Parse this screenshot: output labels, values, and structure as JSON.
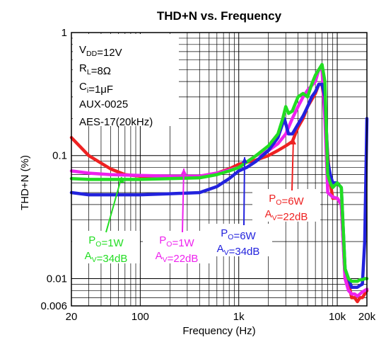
{
  "chart_data": {
    "type": "line",
    "title": "THD+N vs. Frequency",
    "xlabel": "Frequency (Hz)",
    "ylabel": "THD+N (%)",
    "xscale": "log",
    "yscale": "log",
    "xlim": [
      20,
      20000
    ],
    "ylim": [
      0.006,
      1
    ],
    "grid": true,
    "x_tick_labels": [
      "20",
      "100",
      "1k",
      "10k",
      "20k"
    ],
    "y_tick_labels": [
      "1",
      "0.1",
      "0.01",
      "0.006"
    ],
    "conditions": [
      "VDD=12V",
      "RL=8Ω",
      "Ci=1μF",
      "AUX-0025",
      "AES-17(20kHz)"
    ],
    "annotations": [
      {
        "text": "PO=1W, AV=34dB",
        "color": "#22dd22"
      },
      {
        "text": "PO=1W, AV=22dB",
        "color": "#ee22ee"
      },
      {
        "text": "PO=6W, AV=34dB",
        "color": "#2222dd"
      },
      {
        "text": "PO=6W, AV=22dB",
        "color": "#ee2222"
      }
    ],
    "series": [
      {
        "label": "PO=6W, AV=22dB",
        "color": "#ee2222",
        "points": [
          [
            20,
            0.14
          ],
          [
            30,
            0.1
          ],
          [
            50,
            0.078
          ],
          [
            70,
            0.07
          ],
          [
            100,
            0.068
          ],
          [
            200,
            0.067
          ],
          [
            400,
            0.068
          ],
          [
            600,
            0.072
          ],
          [
            800,
            0.078
          ],
          [
            1000,
            0.085
          ],
          [
            1500,
            0.092
          ],
          [
            2000,
            0.1
          ],
          [
            2500,
            0.11
          ],
          [
            3000,
            0.12
          ],
          [
            3500,
            0.13
          ],
          [
            4000,
            0.17
          ],
          [
            4500,
            0.2
          ],
          [
            5000,
            0.25
          ],
          [
            6000,
            0.32
          ],
          [
            6500,
            0.38
          ],
          [
            7000,
            0.38
          ],
          [
            7500,
            0.25
          ],
          [
            8000,
            0.1
          ],
          [
            8500,
            0.06
          ],
          [
            9000,
            0.045
          ],
          [
            10000,
            0.045
          ],
          [
            11000,
            0.04
          ],
          [
            12000,
            0.01
          ],
          [
            13000,
            0.0095
          ],
          [
            14000,
            0.007
          ],
          [
            15000,
            0.007
          ],
          [
            16000,
            0.0065
          ],
          [
            17000,
            0.007
          ],
          [
            18000,
            0.007
          ],
          [
            19000,
            0.0075
          ],
          [
            20000,
            0.008
          ]
        ]
      },
      {
        "label": "PO=1W, AV=22dB",
        "color": "#ee22ee",
        "points": [
          [
            20,
            0.075
          ],
          [
            30,
            0.072
          ],
          [
            50,
            0.07
          ],
          [
            100,
            0.069
          ],
          [
            200,
            0.068
          ],
          [
            400,
            0.068
          ],
          [
            600,
            0.072
          ],
          [
            1000,
            0.08
          ],
          [
            1500,
            0.1
          ],
          [
            2000,
            0.11
          ],
          [
            2500,
            0.125
          ],
          [
            3000,
            0.15
          ],
          [
            3500,
            0.2
          ],
          [
            4000,
            0.25
          ],
          [
            4500,
            0.3
          ],
          [
            5000,
            0.34
          ],
          [
            6000,
            0.4
          ],
          [
            6500,
            0.5
          ],
          [
            7000,
            0.5
          ],
          [
            7500,
            0.2
          ],
          [
            8000,
            0.05
          ],
          [
            9000,
            0.046
          ],
          [
            10000,
            0.045
          ],
          [
            11000,
            0.04
          ],
          [
            12000,
            0.01
          ],
          [
            13000,
            0.008
          ],
          [
            14000,
            0.0075
          ],
          [
            15000,
            0.0075
          ],
          [
            16000,
            0.0072
          ],
          [
            17000,
            0.0075
          ],
          [
            18000,
            0.0078
          ],
          [
            19000,
            0.008
          ],
          [
            20000,
            0.0082
          ]
        ]
      },
      {
        "label": "PO=6W, AV=34dB",
        "color": "#2222dd",
        "points": [
          [
            20,
            0.05
          ],
          [
            30,
            0.048
          ],
          [
            50,
            0.048
          ],
          [
            100,
            0.048
          ],
          [
            200,
            0.049
          ],
          [
            400,
            0.05
          ],
          [
            600,
            0.056
          ],
          [
            800,
            0.065
          ],
          [
            1000,
            0.075
          ],
          [
            1200,
            0.08
          ],
          [
            1500,
            0.09
          ],
          [
            2000,
            0.11
          ],
          [
            2500,
            0.14
          ],
          [
            2900,
            0.2
          ],
          [
            3200,
            0.15
          ],
          [
            3500,
            0.15
          ],
          [
            4000,
            0.18
          ],
          [
            4500,
            0.21
          ],
          [
            5000,
            0.25
          ],
          [
            5500,
            0.3
          ],
          [
            6000,
            0.33
          ],
          [
            6500,
            0.38
          ],
          [
            7000,
            0.38
          ],
          [
            7500,
            0.3
          ],
          [
            8000,
            0.09
          ],
          [
            8500,
            0.07
          ],
          [
            9000,
            0.06
          ],
          [
            10000,
            0.06
          ],
          [
            11000,
            0.055
          ],
          [
            12000,
            0.012
          ],
          [
            13000,
            0.01
          ],
          [
            14000,
            0.0085
          ],
          [
            15000,
            0.0085
          ],
          [
            16000,
            0.0085
          ],
          [
            17000,
            0.0088
          ],
          [
            18000,
            0.009
          ],
          [
            19000,
            0.02
          ],
          [
            20000,
            0.2
          ]
        ]
      },
      {
        "label": "PO=1W, AV=34dB",
        "color": "#22dd22",
        "points": [
          [
            20,
            0.065
          ],
          [
            30,
            0.064
          ],
          [
            50,
            0.064
          ],
          [
            100,
            0.064
          ],
          [
            200,
            0.065
          ],
          [
            400,
            0.066
          ],
          [
            600,
            0.07
          ],
          [
            800,
            0.075
          ],
          [
            1000,
            0.08
          ],
          [
            1500,
            0.1
          ],
          [
            2000,
            0.12
          ],
          [
            2500,
            0.15
          ],
          [
            2800,
            0.2
          ],
          [
            3000,
            0.25
          ],
          [
            3200,
            0.22
          ],
          [
            3500,
            0.23
          ],
          [
            4000,
            0.3
          ],
          [
            4500,
            0.32
          ],
          [
            5000,
            0.3
          ],
          [
            5500,
            0.38
          ],
          [
            6000,
            0.45
          ],
          [
            6500,
            0.5
          ],
          [
            7000,
            0.55
          ],
          [
            7500,
            0.4
          ],
          [
            8000,
            0.07
          ],
          [
            8500,
            0.06
          ],
          [
            9000,
            0.055
          ],
          [
            10000,
            0.06
          ],
          [
            11000,
            0.055
          ],
          [
            12000,
            0.012
          ],
          [
            13000,
            0.01
          ],
          [
            14000,
            0.0095
          ],
          [
            15000,
            0.0095
          ],
          [
            16000,
            0.0095
          ],
          [
            17000,
            0.0098
          ],
          [
            18000,
            0.0098
          ],
          [
            19000,
            0.01
          ],
          [
            20000,
            0.01
          ]
        ]
      }
    ]
  }
}
